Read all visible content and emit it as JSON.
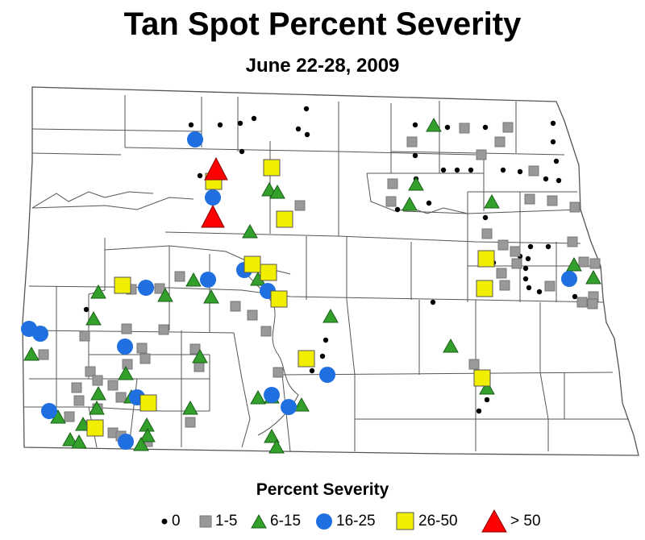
{
  "title": "Tan Spot Percent Severity",
  "subtitle": "June 22-28, 2009",
  "legend": {
    "title": "Percent Severity",
    "items": [
      {
        "key": "dot",
        "label": "0",
        "color": "#000000"
      },
      {
        "key": "square",
        "label": "1-5",
        "color": "#999999"
      },
      {
        "key": "triangle",
        "label": "6-15",
        "color": "#33a02c"
      },
      {
        "key": "circle",
        "label": "16-25",
        "color": "#1f6fe0"
      },
      {
        "key": "yellow",
        "label": "26-50",
        "color": "#f2ee00"
      },
      {
        "key": "red",
        "label": "> 50",
        "color": "#ff0000"
      }
    ]
  },
  "map": {
    "region": "North Dakota counties",
    "border_color": "#555555"
  }
}
